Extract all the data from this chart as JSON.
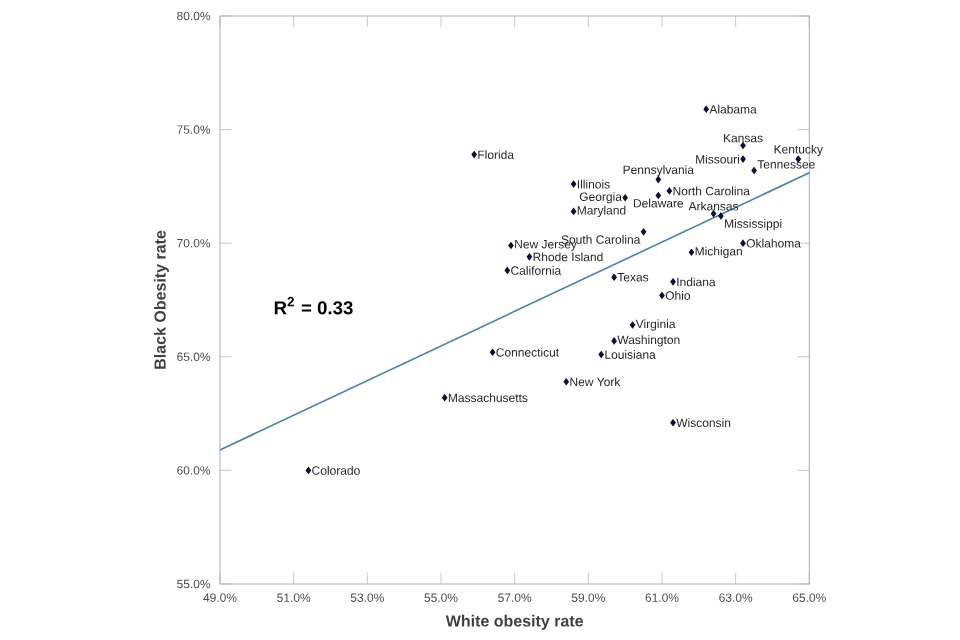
{
  "chart_data": {
    "type": "scatter",
    "xlabel": "White obesity rate",
    "ylabel": "Black Obesity rate",
    "xlim": [
      49,
      65
    ],
    "ylim": [
      55,
      80
    ],
    "xticks": [
      {
        "value": 49,
        "label": "49.0%"
      },
      {
        "value": 51,
        "label": "51.0%"
      },
      {
        "value": 53,
        "label": "53.0%"
      },
      {
        "value": 55,
        "label": "55.0%"
      },
      {
        "value": 57,
        "label": "57.0%"
      },
      {
        "value": 59,
        "label": "59.0%"
      },
      {
        "value": 61,
        "label": "61.0%"
      },
      {
        "value": 63,
        "label": "63.0%"
      },
      {
        "value": 65,
        "label": "65.0%"
      }
    ],
    "yticks": [
      {
        "value": 55,
        "label": "55.0%"
      },
      {
        "value": 60,
        "label": "60.0%"
      },
      {
        "value": 65,
        "label": "65.0%"
      },
      {
        "value": 70,
        "label": "70.0%"
      },
      {
        "value": 75,
        "label": "75.0%"
      },
      {
        "value": 80,
        "label": "80.0%"
      }
    ],
    "marker": "diamond",
    "grid": false,
    "series": [
      {
        "color": "#0d0d3a",
        "x": [
          62.2,
          63.2,
          64.7,
          63.2,
          63.5,
          55.9,
          60.9,
          61.2,
          58.6,
          60.0,
          60.9,
          62.4,
          62.6,
          58.6,
          60.5,
          63.2,
          61.8,
          56.9,
          57.4,
          56.8,
          59.7,
          61.3,
          61.0,
          60.2,
          59.7,
          59.35,
          56.4,
          58.4,
          55.1,
          61.3,
          51.4
        ],
        "values": [
          75.9,
          74.3,
          73.7,
          73.7,
          73.2,
          73.9,
          72.8,
          72.3,
          72.6,
          72.0,
          72.1,
          71.3,
          71.2,
          71.4,
          70.5,
          70.0,
          69.6,
          69.9,
          69.4,
          68.8,
          68.5,
          68.3,
          67.7,
          66.4,
          65.7,
          65.1,
          65.2,
          63.9,
          63.2,
          62.1,
          60.0
        ]
      },
      {
        "type": "line",
        "marker": "none",
        "color": "#4a7ebb",
        "x": [
          49,
          65
        ],
        "values": [
          60.9,
          73.1
        ]
      }
    ],
    "annotations": [
      {
        "text": "Alabama",
        "x": 62.2,
        "y": 75.9
      },
      {
        "text": "Kansas",
        "x": 63.2,
        "y": 74.3
      },
      {
        "text": "Kentucky",
        "x": 64.7,
        "y": 73.7
      },
      {
        "text": "Missouri",
        "x": 63.2,
        "y": 73.7
      },
      {
        "text": "Tennessee",
        "x": 63.5,
        "y": 73.2
      },
      {
        "text": "Florida",
        "x": 55.9,
        "y": 73.9
      },
      {
        "text": "Pennsylvania",
        "x": 60.9,
        "y": 72.8
      },
      {
        "text": "North Carolina",
        "x": 61.2,
        "y": 72.3
      },
      {
        "text": "Illinois",
        "x": 58.6,
        "y": 72.6
      },
      {
        "text": "Georgia",
        "x": 60.0,
        "y": 72.0
      },
      {
        "text": "Delaware",
        "x": 60.9,
        "y": 72.1
      },
      {
        "text": "Arkansas",
        "x": 62.4,
        "y": 71.3
      },
      {
        "text": "Mississippi",
        "x": 62.6,
        "y": 71.2
      },
      {
        "text": "Maryland",
        "x": 58.6,
        "y": 71.4
      },
      {
        "text": "South Carolina",
        "x": 60.5,
        "y": 70.5
      },
      {
        "text": "Oklahoma",
        "x": 63.2,
        "y": 70.0
      },
      {
        "text": "Michigan",
        "x": 61.8,
        "y": 69.6
      },
      {
        "text": "New Jersey",
        "x": 56.9,
        "y": 69.9
      },
      {
        "text": "Rhode Island",
        "x": 57.4,
        "y": 69.4
      },
      {
        "text": "California",
        "x": 56.8,
        "y": 68.8
      },
      {
        "text": "Texas",
        "x": 59.7,
        "y": 68.5
      },
      {
        "text": "Indiana",
        "x": 61.3,
        "y": 68.3
      },
      {
        "text": "Ohio",
        "x": 61.0,
        "y": 67.7
      },
      {
        "text": "Virginia",
        "x": 60.2,
        "y": 66.4
      },
      {
        "text": "Washington",
        "x": 59.7,
        "y": 65.7
      },
      {
        "text": "Louisiana",
        "x": 59.35,
        "y": 65.1
      },
      {
        "text": "Connecticut",
        "x": 56.4,
        "y": 65.2
      },
      {
        "text": "New York",
        "x": 58.4,
        "y": 63.9
      },
      {
        "text": "Massachusetts",
        "x": 55.1,
        "y": 63.2
      },
      {
        "text": "Wisconsin",
        "x": 61.3,
        "y": 62.1
      },
      {
        "text": "Colorado",
        "x": 51.4,
        "y": 60.0
      },
      "R$^{2}$ = 0.33"
    ]
  }
}
